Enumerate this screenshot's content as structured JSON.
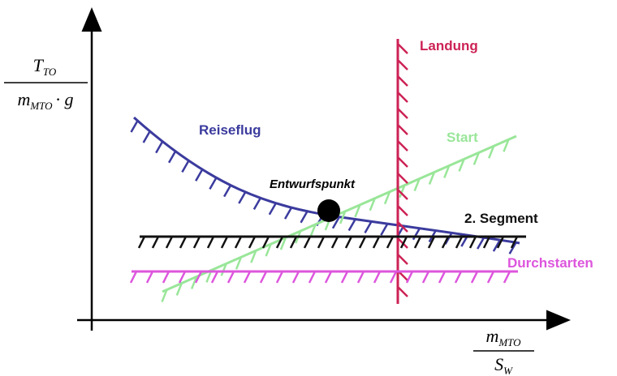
{
  "y_label": {
    "numerator": {
      "base": "T",
      "subscript": "TO"
    },
    "denominator": {
      "base": "m",
      "subscript": "MTO",
      "suffix": "· g"
    }
  },
  "x_label": {
    "numerator": {
      "base": "m",
      "subscript": "MTO"
    },
    "denominator": {
      "base": "S",
      "subscript": "W"
    }
  },
  "curves": [
    {
      "label": "Reiseflug"
    },
    {
      "label": "Start"
    },
    {
      "label": "Landung"
    },
    {
      "label": "2. Segment"
    },
    {
      "label": "Durchstarten"
    }
  ],
  "design_point": {
    "label": "Entwurfspunkt"
  }
}
